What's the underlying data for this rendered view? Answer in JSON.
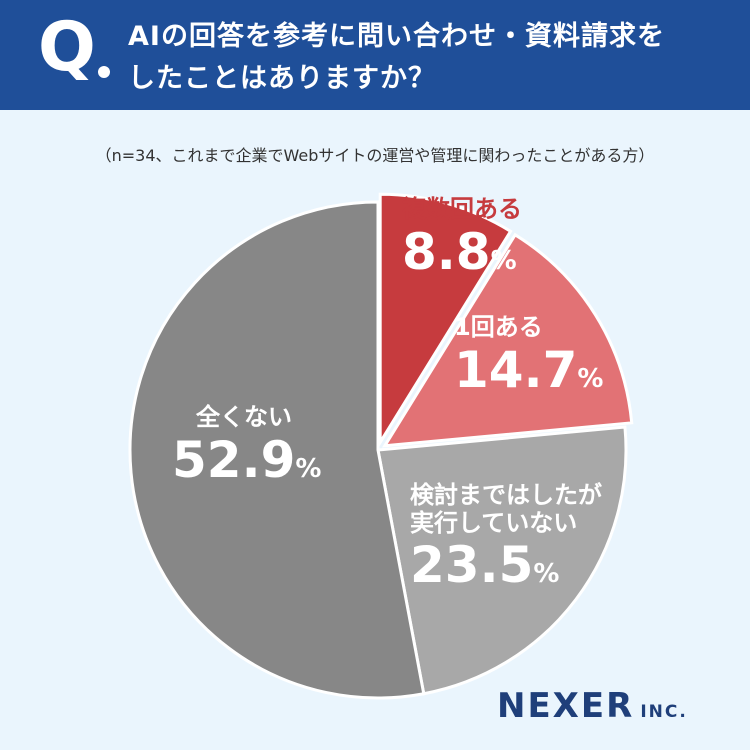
{
  "question": {
    "mark": "Q",
    "line1": "AIの回答を参考に問い合わせ・資料請求を",
    "line2": "したことはありますか？"
  },
  "subtitle": "（n=34、これまで企業でWebサイトの運営や管理に関わったことがある方）",
  "logo": {
    "name": "NEXER",
    "suffix": "INC."
  },
  "colors": {
    "header": "#1f4f99",
    "background": "#eaf5fd",
    "slice_multiple": "#c63b3e",
    "slice_once": "#e27275",
    "slice_considered": "#a8a8a8",
    "slice_none": "#878787"
  },
  "chart_data": {
    "type": "pie",
    "start": "12 o'clock, clockwise",
    "slices": [
      {
        "label": "複数回ある",
        "value": 8.8,
        "value_text": "8.8",
        "color": "#c63b3e",
        "exploded": true
      },
      {
        "label": "1回ある",
        "value": 14.7,
        "value_text": "14.7",
        "color": "#e27275",
        "exploded": true
      },
      {
        "label": "検討まではしたが実行していない",
        "value": 23.5,
        "value_text": "23.5",
        "label_lines": [
          "検討まではしたが",
          "実行していない"
        ],
        "color": "#a8a8a8",
        "exploded": false
      },
      {
        "label": "全くない",
        "value": 52.9,
        "value_text": "52.9",
        "color": "#878787",
        "exploded": false
      }
    ],
    "unit": "%"
  }
}
